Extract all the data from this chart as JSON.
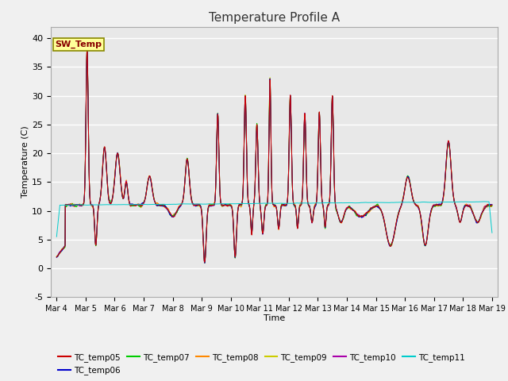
{
  "title": "Temperature Profile A",
  "xlabel": "Time",
  "ylabel": "Temperature (C)",
  "ylim": [
    -5,
    42
  ],
  "background_color": "#f0f0f0",
  "plot_bg_color": "#e8e8e8",
  "grid_color": "#ffffff",
  "series_colors": {
    "TC_temp05": "#cc0000",
    "TC_temp06": "#0000cc",
    "TC_temp07": "#00cc00",
    "TC_temp08": "#ff8800",
    "TC_temp09": "#cccc00",
    "TC_temp10": "#aa00aa",
    "TC_temp11": "#00cccc"
  },
  "sw_temp_box_color": "#ffff99",
  "sw_temp_border_color": "#888800",
  "sw_temp_text_color": "#880000",
  "xtick_labels": [
    "Mar 4",
    "Mar 5",
    "Mar 6",
    "Mar 7",
    "Mar 8",
    "Mar 9",
    "Mar 10",
    "Mar 11",
    "Mar 12",
    "Mar 13",
    "Mar 14",
    "Mar 15",
    "Mar 16",
    "Mar 17",
    "Mar 18",
    "Mar 19"
  ],
  "ytick_vals": [
    -5,
    0,
    5,
    10,
    15,
    20,
    25,
    30,
    35,
    40
  ]
}
